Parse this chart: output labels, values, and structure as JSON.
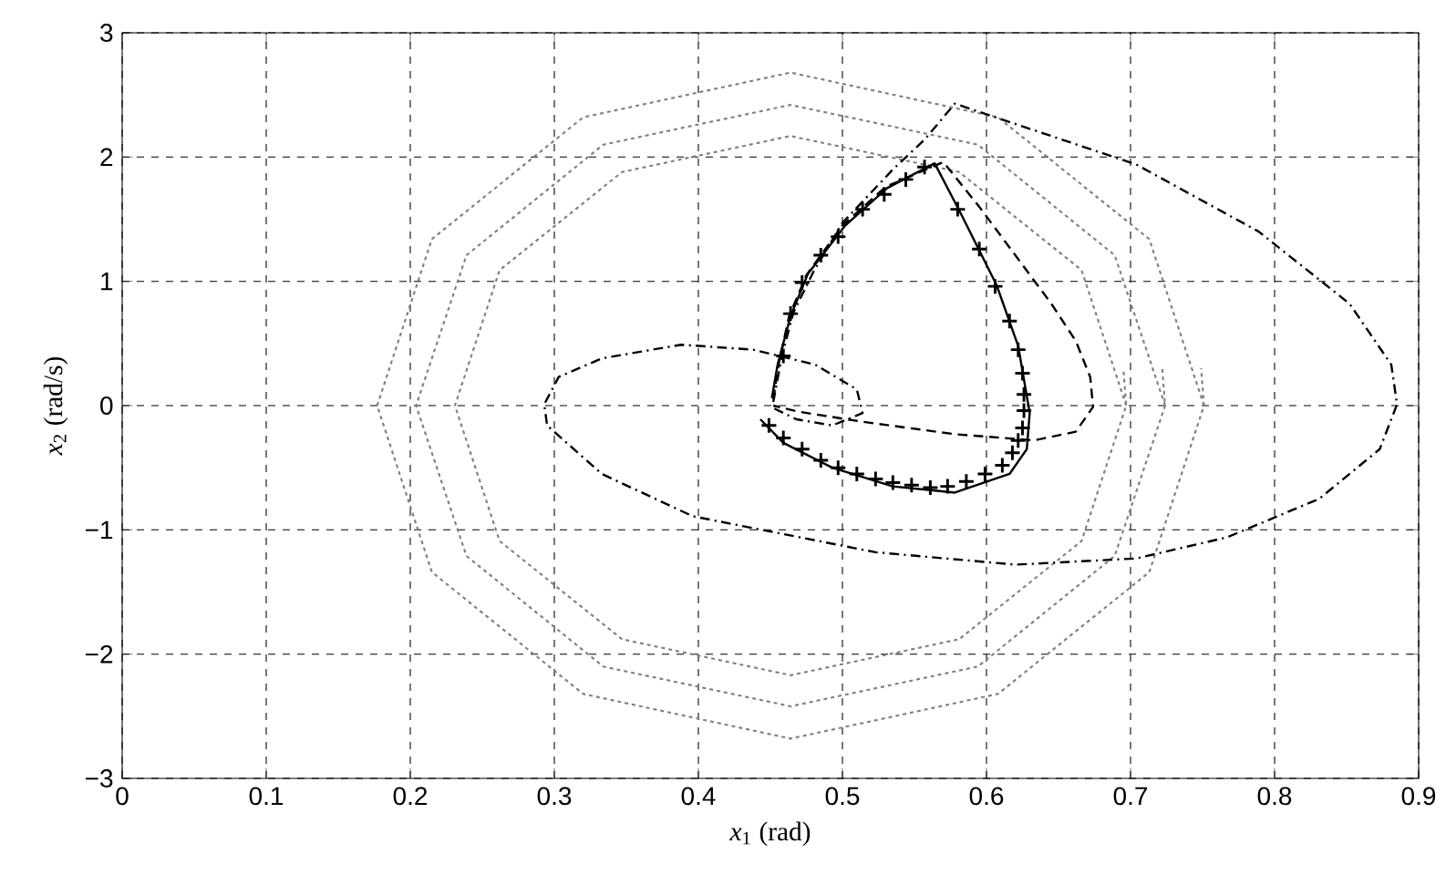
{
  "chart_data": {
    "type": "line",
    "xlabel": "*x*$_{1}$ (rad)",
    "ylabel": "*x*$_{2}$ (rad/s)",
    "xlim": [
      0,
      0.9
    ],
    "ylim": [
      -3,
      3
    ],
    "xticks": [
      0,
      0.1,
      0.2,
      0.3,
      0.4,
      0.5,
      0.6,
      0.7,
      0.8,
      0.9
    ],
    "yticks": [
      {
        "value": -3,
        "label": "−3"
      },
      {
        "value": -2,
        "label": "−2"
      },
      {
        "value": -1,
        "label": "−1"
      },
      0,
      1,
      2,
      3
    ],
    "grid": true,
    "series": [
      {
        "line_style": "dotted",
        "color": "#808080",
        "x": [
          0.751,
          0.713,
          0.608,
          0.464,
          0.32,
          0.215,
          0.177,
          0.215,
          0.32,
          0.464,
          0.608,
          0.713,
          0.751,
          0.749
        ],
        "values": [
          0,
          1.34,
          2.32,
          2.68,
          2.32,
          1.34,
          0,
          -1.34,
          -2.32,
          -2.68,
          -2.32,
          -1.34,
          0,
          0.3
        ]
      },
      {
        "line_style": "dotted",
        "color": "#808080",
        "x": [
          0.724,
          0.689,
          0.594,
          0.464,
          0.334,
          0.239,
          0.204,
          0.239,
          0.334,
          0.464,
          0.594,
          0.689,
          0.724,
          0.722
        ],
        "values": [
          0,
          1.21,
          2.1,
          2.42,
          2.1,
          1.21,
          0,
          -1.21,
          -2.1,
          -2.42,
          -2.1,
          -1.21,
          0,
          0.3
        ]
      },
      {
        "line_style": "dotted",
        "color": "#808080",
        "x": [
          0.697,
          0.666,
          0.581,
          0.464,
          0.347,
          0.262,
          0.231,
          0.262,
          0.347,
          0.464,
          0.581,
          0.666,
          0.697,
          0.695
        ],
        "values": [
          0,
          1.09,
          1.88,
          2.17,
          1.88,
          1.09,
          0,
          -1.09,
          -1.88,
          -2.17,
          -1.88,
          -1.09,
          0,
          0.3
        ]
      },
      {
        "line_style": "dashdot",
        "color": "#000000",
        "x": [
          0.452,
          0.458,
          0.466,
          0.48,
          0.5,
          0.535,
          0.557,
          0.578,
          0.704,
          0.789,
          0.852,
          0.881,
          0.885,
          0.873,
          0.831,
          0.767,
          0.704,
          0.62,
          0.523,
          0.396,
          0.333,
          0.295,
          0.293,
          0.303,
          0.333,
          0.388,
          0.438,
          0.481,
          0.51,
          0.514,
          0.493,
          0.468,
          0.452
        ],
        "values": [
          0.03,
          0.4,
          0.75,
          1.08,
          1.47,
          1.9,
          2.14,
          2.43,
          1.94,
          1.4,
          0.82,
          0.33,
          0.01,
          -0.35,
          -0.75,
          -1.06,
          -1.23,
          -1.28,
          -1.18,
          -0.89,
          -0.55,
          -0.16,
          0.01,
          0.23,
          0.38,
          0.49,
          0.45,
          0.33,
          0.13,
          -0.06,
          -0.16,
          -0.11,
          -0.02
        ]
      },
      {
        "line_style": "dashed",
        "color": "#000000",
        "x": [
          0.452,
          0.456,
          0.463,
          0.475,
          0.5,
          0.53,
          0.57,
          0.595,
          0.62,
          0.645,
          0.662,
          0.672,
          0.674,
          0.662,
          0.633,
          0.578,
          0.514,
          0.47,
          0.452
        ],
        "values": [
          0.05,
          0.35,
          0.72,
          1.05,
          1.45,
          1.76,
          1.96,
          1.6,
          1.21,
          0.82,
          0.52,
          0.23,
          -0.01,
          -0.21,
          -0.28,
          -0.23,
          -0.13,
          -0.05,
          0
        ]
      },
      {
        "line_style": "solid",
        "color": "#000000",
        "x": [
          0.451,
          0.455,
          0.464,
          0.476,
          0.502,
          0.531,
          0.564,
          0.582,
          0.607,
          0.622,
          0.63,
          0.628,
          0.616,
          0.578,
          0.535,
          0.493,
          0.459,
          0.443
        ],
        "values": [
          0.06,
          0.33,
          0.72,
          1.06,
          1.45,
          1.75,
          1.95,
          1.55,
          0.97,
          0.48,
          -0.06,
          -0.35,
          -0.55,
          -0.7,
          -0.65,
          -0.5,
          -0.3,
          -0.11
        ]
      },
      {
        "type": "scatter",
        "marker": "cross",
        "color": "#000000",
        "x": [
          0.459,
          0.464,
          0.472,
          0.485,
          0.497,
          0.514,
          0.529,
          0.544,
          0.557,
          0.58,
          0.595,
          0.606,
          0.616,
          0.622,
          0.625,
          0.626,
          0.626,
          0.625,
          0.622,
          0.618,
          0.611,
          0.599,
          0.586,
          0.573,
          0.561,
          0.548,
          0.535,
          0.523,
          0.51,
          0.497,
          0.485,
          0.472,
          0.459,
          0.449
        ],
        "values": [
          0.4,
          0.74,
          0.99,
          1.21,
          1.36,
          1.58,
          1.7,
          1.82,
          1.92,
          1.58,
          1.26,
          0.96,
          0.68,
          0.45,
          0.26,
          0.09,
          -0.04,
          -0.18,
          -0.28,
          -0.38,
          -0.48,
          -0.55,
          -0.61,
          -0.65,
          -0.66,
          -0.64,
          -0.62,
          -0.59,
          -0.55,
          -0.5,
          -0.44,
          -0.35,
          -0.26,
          -0.16
        ]
      }
    ]
  }
}
